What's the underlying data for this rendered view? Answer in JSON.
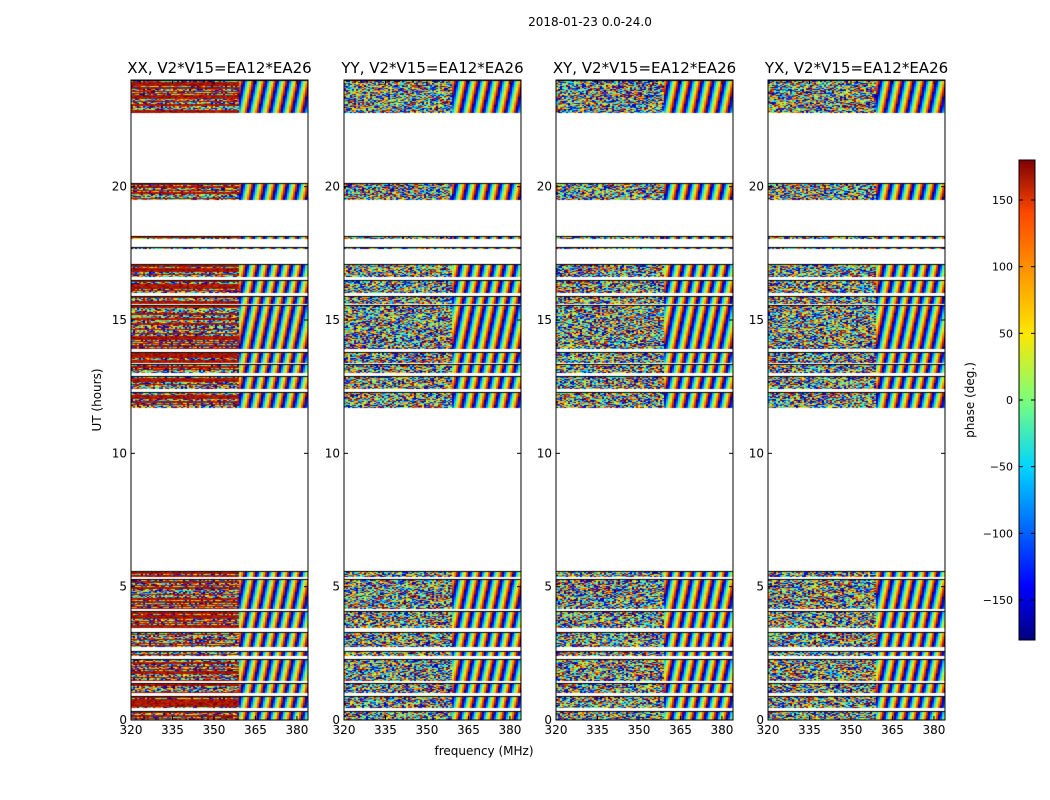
{
  "chart_data": {
    "type": "heatmap",
    "title": "2018-01-23 0.0-24.0",
    "xlabel": "frequency (MHz)",
    "ylabel": "UT (hours)",
    "xlim": [
      320,
      384
    ],
    "ylim": [
      0,
      24
    ],
    "x_ticks": [
      320,
      335,
      350,
      365,
      380
    ],
    "y_ticks": [
      0,
      5,
      10,
      15,
      20
    ],
    "panels": [
      {
        "name": "XX",
        "title": "XX, V2*V15=EA12*EA26"
      },
      {
        "name": "YY",
        "title": "YY, V2*V15=EA12*EA26"
      },
      {
        "name": "XY",
        "title": "XY, V2*V15=EA12*EA26"
      },
      {
        "name": "YX",
        "title": "YX, V2*V15=EA12*EA26"
      }
    ],
    "time_bands_hours": [
      [
        0.0,
        0.35
      ],
      [
        0.45,
        0.9
      ],
      [
        1.0,
        1.4
      ],
      [
        1.45,
        2.3
      ],
      [
        2.4,
        2.6
      ],
      [
        2.75,
        3.3
      ],
      [
        3.45,
        4.1
      ],
      [
        4.15,
        5.3
      ],
      [
        5.35,
        5.6
      ],
      [
        11.7,
        12.3
      ],
      [
        12.4,
        12.9
      ],
      [
        13.0,
        13.35
      ],
      [
        13.4,
        13.8
      ],
      [
        13.9,
        15.55
      ],
      [
        15.6,
        15.9
      ],
      [
        16.0,
        16.5
      ],
      [
        16.6,
        17.1
      ],
      [
        17.65,
        17.75
      ],
      [
        18.05,
        18.15
      ],
      [
        19.5,
        20.15
      ],
      [
        22.75,
        24.0
      ]
    ],
    "colorbar": {
      "label": "phase (deg.)",
      "range": [
        -180,
        180
      ],
      "ticks": [
        150,
        100,
        50,
        0,
        -50,
        -100,
        -150
      ],
      "tick_labels": [
        "150",
        "100",
        "50",
        "0",
        "−50",
        "−100",
        "−150"
      ],
      "colors": [
        "#00007f",
        "#0000ff",
        "#00d4ff",
        "#7cff79",
        "#ffe600",
        "#ff4700",
        "#7f0000"
      ]
    }
  }
}
